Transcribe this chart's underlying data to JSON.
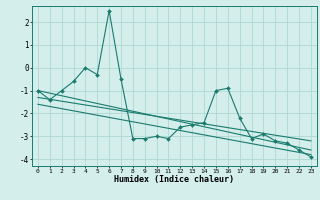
{
  "xlabel": "Humidex (Indice chaleur)",
  "bg_color": "#d4eeeb",
  "grid_color": "#b0d8d4",
  "line_color": "#1a7a6e",
  "xlim": [
    -0.5,
    23.5
  ],
  "ylim": [
    -4.3,
    2.7
  ],
  "xticks": [
    0,
    1,
    2,
    3,
    4,
    5,
    6,
    7,
    8,
    9,
    10,
    11,
    12,
    13,
    14,
    15,
    16,
    17,
    18,
    19,
    20,
    21,
    22,
    23
  ],
  "yticks": [
    -4,
    -3,
    -2,
    -1,
    0,
    1,
    2
  ],
  "main_x": [
    0,
    1,
    2,
    3,
    4,
    5,
    6,
    7,
    8,
    9,
    10,
    11,
    12,
    13,
    14,
    15,
    16,
    17,
    18,
    19,
    20,
    21,
    22,
    23
  ],
  "main_y": [
    -1.0,
    -1.4,
    -1.0,
    -0.6,
    0.0,
    -0.3,
    2.5,
    -0.5,
    -3.1,
    -3.1,
    -3.0,
    -3.1,
    -2.6,
    -2.5,
    -2.4,
    -1.0,
    -0.9,
    -2.2,
    -3.1,
    -2.9,
    -3.2,
    -3.3,
    -3.6,
    -3.9
  ],
  "trend1_x": [
    0,
    23
  ],
  "trend1_y": [
    -1.0,
    -3.6
  ],
  "trend2_x": [
    0,
    23
  ],
  "trend2_y": [
    -1.3,
    -3.2
  ],
  "trend3_x": [
    0,
    23
  ],
  "trend3_y": [
    -1.6,
    -3.8
  ]
}
